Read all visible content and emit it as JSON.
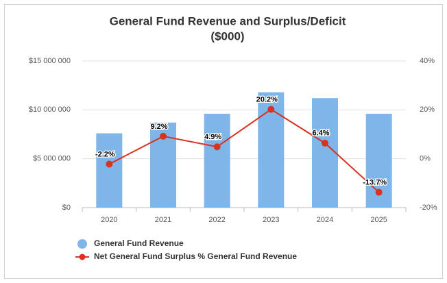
{
  "chart_data": {
    "type": "bar",
    "title": [
      "General Fund Revenue and Surplus/Deficit",
      "($000)"
    ],
    "categories": [
      "2020",
      "2021",
      "2022",
      "2023",
      "2024",
      "2025"
    ],
    "series": [
      {
        "name": "General Fund Revenue",
        "type": "bar",
        "color": "#7eb6ea",
        "values": [
          7600000,
          8700000,
          9600000,
          11800000,
          11200000,
          9600000
        ]
      },
      {
        "name": "Net General Fund Surplus % General Fund Revenue",
        "type": "line",
        "color": "#d9321f",
        "axis": "y2",
        "values": [
          -2.2,
          9.2,
          4.9,
          20.2,
          6.4,
          -13.7
        ],
        "value_labels": [
          "-2.2%",
          "9.2%",
          "4.9%",
          "20.2%",
          "6.4%",
          "-13.7%"
        ]
      }
    ],
    "ylim": [
      0,
      15000000
    ],
    "yticks": [
      {
        "value": 0,
        "label": "$0"
      },
      {
        "value": 5000000,
        "label": "$5 000 000"
      },
      {
        "value": 10000000,
        "label": "$10 000 000"
      },
      {
        "value": 15000000,
        "label": "$15 000 000"
      }
    ],
    "y2lim": [
      -20,
      40
    ],
    "y2ticks": [
      {
        "value": -20,
        "label": "-20%"
      },
      {
        "value": 0,
        "label": "0%"
      },
      {
        "value": 20,
        "label": "20%"
      },
      {
        "value": 40,
        "label": "40%"
      }
    ],
    "grid": true,
    "legend": "bottom-left"
  }
}
